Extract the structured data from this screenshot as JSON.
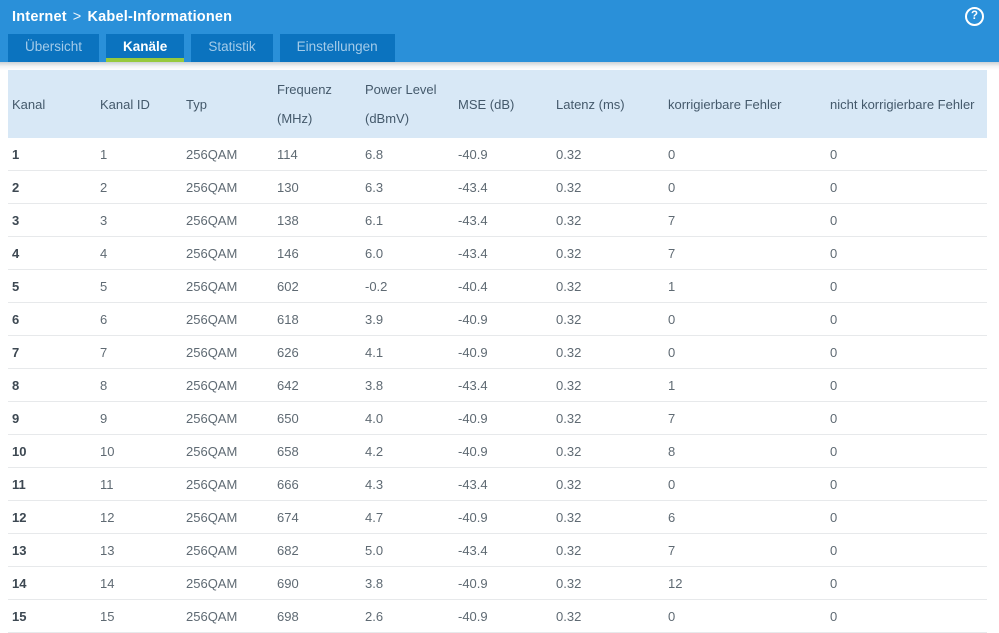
{
  "breadcrumb": {
    "section": "Internet",
    "separator": ">",
    "page": "Kabel-Informationen"
  },
  "help": {
    "icon": "help-icon",
    "glyph": "?"
  },
  "tabs": [
    {
      "id": "uebersicht",
      "label": "Übersicht",
      "active": false
    },
    {
      "id": "kanaele",
      "label": "Kanäle",
      "active": true
    },
    {
      "id": "statistik",
      "label": "Statistik",
      "active": false
    },
    {
      "id": "einstellungen",
      "label": "Einstellungen",
      "active": false
    }
  ],
  "colors": {
    "topbar_blue": "#2a90d9",
    "tab_blue": "#0b73bf",
    "active_tab_underline_green": "#97c93d",
    "table_header_blue": "#d8e8f6",
    "header_text": "#44596b",
    "cell_text": "#5f6a73"
  },
  "table": {
    "columns": [
      {
        "id": "kanal",
        "label": "Kanal",
        "unit": ""
      },
      {
        "id": "kanal-id",
        "label": "Kanal ID",
        "unit": ""
      },
      {
        "id": "typ",
        "label": "Typ",
        "unit": ""
      },
      {
        "id": "frequenz",
        "label": "Frequenz",
        "unit": "(MHz)"
      },
      {
        "id": "power-level",
        "label": "Power Level",
        "unit": "(dBmV)"
      },
      {
        "id": "mse",
        "label": "MSE (dB)",
        "unit": ""
      },
      {
        "id": "latenz",
        "label": "Latenz (ms)",
        "unit": ""
      },
      {
        "id": "korrigierbare-fehler",
        "label": "korrigierbare Fehler",
        "unit": ""
      },
      {
        "id": "nicht-korrigierbare-fehler",
        "label": "nicht korrigierbare Fehler",
        "unit": ""
      }
    ],
    "rows": [
      [
        "1",
        "1",
        "256QAM",
        "114",
        "6.8",
        "-40.9",
        "0.32",
        "0",
        "0"
      ],
      [
        "2",
        "2",
        "256QAM",
        "130",
        "6.3",
        "-43.4",
        "0.32",
        "0",
        "0"
      ],
      [
        "3",
        "3",
        "256QAM",
        "138",
        "6.1",
        "-43.4",
        "0.32",
        "7",
        "0"
      ],
      [
        "4",
        "4",
        "256QAM",
        "146",
        "6.0",
        "-43.4",
        "0.32",
        "7",
        "0"
      ],
      [
        "5",
        "5",
        "256QAM",
        "602",
        "-0.2",
        "-40.4",
        "0.32",
        "1",
        "0"
      ],
      [
        "6",
        "6",
        "256QAM",
        "618",
        "3.9",
        "-40.9",
        "0.32",
        "0",
        "0"
      ],
      [
        "7",
        "7",
        "256QAM",
        "626",
        "4.1",
        "-40.9",
        "0.32",
        "0",
        "0"
      ],
      [
        "8",
        "8",
        "256QAM",
        "642",
        "3.8",
        "-43.4",
        "0.32",
        "1",
        "0"
      ],
      [
        "9",
        "9",
        "256QAM",
        "650",
        "4.0",
        "-40.9",
        "0.32",
        "7",
        "0"
      ],
      [
        "10",
        "10",
        "256QAM",
        "658",
        "4.2",
        "-40.9",
        "0.32",
        "8",
        "0"
      ],
      [
        "11",
        "11",
        "256QAM",
        "666",
        "4.3",
        "-43.4",
        "0.32",
        "0",
        "0"
      ],
      [
        "12",
        "12",
        "256QAM",
        "674",
        "4.7",
        "-40.9",
        "0.32",
        "6",
        "0"
      ],
      [
        "13",
        "13",
        "256QAM",
        "682",
        "5.0",
        "-43.4",
        "0.32",
        "7",
        "0"
      ],
      [
        "14",
        "14",
        "256QAM",
        "690",
        "3.8",
        "-40.9",
        "0.32",
        "12",
        "0"
      ],
      [
        "15",
        "15",
        "256QAM",
        "698",
        "2.6",
        "-40.9",
        "0.32",
        "0",
        "0"
      ]
    ]
  }
}
